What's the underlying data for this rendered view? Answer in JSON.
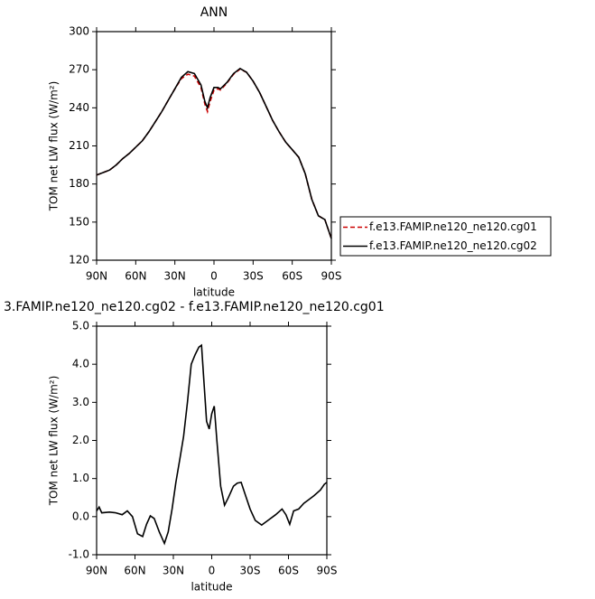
{
  "chart_data": [
    {
      "type": "line",
      "title": "ANN",
      "ylabel": "TOM net LW flux (W/m²)",
      "xlabel": "latitude",
      "xlim": [
        90,
        -90
      ],
      "xticks": [
        {
          "value": 90,
          "label": "90N"
        },
        {
          "value": 60,
          "label": "60N"
        },
        {
          "value": 30,
          "label": "30N"
        },
        0,
        {
          "value": -30,
          "label": "30S"
        },
        {
          "value": -60,
          "label": "60S"
        },
        {
          "value": -90,
          "label": "90S"
        }
      ],
      "ylim": [
        120,
        300
      ],
      "yticks": [
        120,
        150,
        180,
        210,
        240,
        270,
        300
      ],
      "legend": "right",
      "x": [
        90,
        85,
        80,
        75,
        70,
        65,
        60,
        55,
        50,
        45,
        40,
        35,
        30,
        25,
        20,
        15,
        10,
        7,
        5,
        3,
        0,
        -3,
        -5,
        -10,
        -15,
        -20,
        -25,
        -30,
        -35,
        -40,
        -45,
        -50,
        -55,
        -60,
        -65,
        -70,
        -75,
        -80,
        -85,
        -90
      ],
      "series": [
        {
          "name": "f.e13.FAMIP.ne120_ne120.cg01",
          "color": "#cc0000",
          "style": "dashed",
          "values": [
            187,
            189,
            191,
            195,
            200,
            204,
            209,
            214,
            221,
            229,
            237,
            246,
            255,
            263,
            266.5,
            265,
            256,
            243,
            237,
            245,
            254,
            255,
            254,
            259.5,
            266.5,
            270.5,
            268,
            261,
            252,
            241,
            230,
            221,
            213,
            207,
            201,
            188,
            168,
            155,
            152,
            137
          ]
        },
        {
          "name": "f.e13.FAMIP.ne120_ne120.cg02",
          "color": "#000000",
          "style": "solid",
          "values": [
            187,
            189,
            191,
            195,
            200,
            204,
            209,
            214,
            221,
            229,
            237,
            246,
            255,
            264,
            268.5,
            267,
            258,
            245,
            240,
            248,
            256,
            256,
            255,
            260,
            267,
            271,
            268,
            261,
            252,
            241,
            230,
            221,
            213,
            207,
            201,
            188,
            168,
            155,
            152,
            137
          ]
        }
      ]
    },
    {
      "type": "line",
      "title": "3.FAMIP.ne120_ne120.cg02 - f.e13.FAMIP.ne120_ne120.cg01",
      "ylabel": "TOM net LW flux (W/m²)",
      "xlabel": "latitude",
      "xlim": [
        90,
        -90
      ],
      "xticks": [
        {
          "value": 90,
          "label": "90N"
        },
        {
          "value": 60,
          "label": "60N"
        },
        {
          "value": 30,
          "label": "30N"
        },
        0,
        {
          "value": -30,
          "label": "30S"
        },
        {
          "value": -60,
          "label": "60S"
        },
        {
          "value": -90,
          "label": "90S"
        }
      ],
      "ylim": [
        -1,
        5
      ],
      "yticks": [
        {
          "value": -1,
          "label": "-1.0"
        },
        {
          "value": 0,
          "label": "0.0"
        },
        {
          "value": 1,
          "label": "1.0"
        },
        {
          "value": 2,
          "label": "2.0"
        },
        {
          "value": 3,
          "label": "3.0"
        },
        {
          "value": 4,
          "label": "4.0"
        },
        {
          "value": 5,
          "label": "5.0"
        }
      ],
      "x": [
        90,
        88,
        86,
        80,
        75,
        70,
        66,
        62,
        58,
        54,
        51,
        48,
        45,
        41,
        37,
        34,
        31,
        28,
        25,
        22,
        19,
        16,
        13,
        10,
        8,
        6,
        4,
        2,
        0,
        -2,
        -4,
        -7,
        -10,
        -13,
        -17,
        -20,
        -23,
        -26,
        -30,
        -34,
        -39,
        -44,
        -50,
        -55,
        -58,
        -61,
        -64,
        -68,
        -72,
        -76,
        -80,
        -85,
        -88,
        -90
      ],
      "series": [
        {
          "color": "#000000",
          "style": "solid",
          "values": [
            0.15,
            0.25,
            0.1,
            0.12,
            0.1,
            0.05,
            0.15,
            0.0,
            -0.45,
            -0.52,
            -0.2,
            0.02,
            -0.05,
            -0.4,
            -0.7,
            -0.4,
            0.2,
            0.9,
            1.5,
            2.1,
            3.0,
            4.0,
            4.25,
            4.45,
            4.5,
            3.5,
            2.5,
            2.3,
            2.7,
            2.9,
            2.0,
            0.8,
            0.3,
            0.5,
            0.8,
            0.88,
            0.9,
            0.6,
            0.2,
            -0.1,
            -0.22,
            -0.1,
            0.05,
            0.2,
            0.05,
            -0.2,
            0.15,
            0.2,
            0.35,
            0.45,
            0.55,
            0.7,
            0.85,
            0.9
          ]
        }
      ]
    }
  ]
}
